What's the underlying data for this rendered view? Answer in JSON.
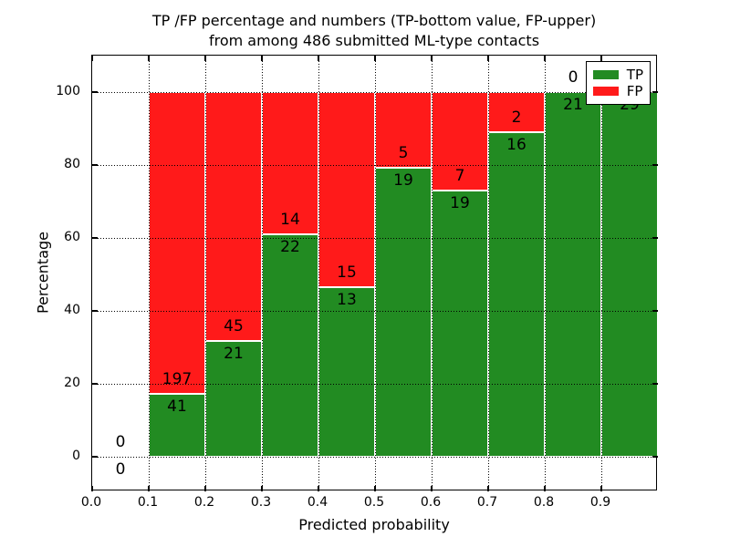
{
  "chart_data": {
    "type": "bar",
    "stacked": true,
    "title_line1": "TP /FP percentage and numbers (TP-bottom value, FP-upper)",
    "title_line2": "from among 486 submitted ML-type contacts",
    "xlabel": "Predicted probability",
    "ylabel": "Percentage",
    "xlim": [
      0.0,
      1.0
    ],
    "ylim": [
      -9.5,
      110
    ],
    "x_tick_labels": [
      "0.0",
      "0.1",
      "0.2",
      "0.3",
      "0.4",
      "0.5",
      "0.6",
      "0.7",
      "0.8",
      "0.9"
    ],
    "y_ticks": [
      0,
      20,
      40,
      60,
      80,
      100
    ],
    "y_tick_labels": [
      "0",
      "20",
      "40",
      "60",
      "80",
      "100"
    ],
    "grid_style": "dotted",
    "total_contacts": 486,
    "colors": {
      "tp": "#228B22",
      "fp": "#FF1A1A"
    },
    "legend": {
      "position": "upper right",
      "entries": [
        {
          "label": "TP",
          "series": "tp"
        },
        {
          "label": "FP",
          "series": "fp"
        }
      ]
    },
    "bins": [
      {
        "x_start": 0.0,
        "x_end": 0.1,
        "tp": 0,
        "fp": 0,
        "tp_percent": null
      },
      {
        "x_start": 0.1,
        "x_end": 0.2,
        "tp": 41,
        "fp": 197,
        "tp_percent": 17.23
      },
      {
        "x_start": 0.2,
        "x_end": 0.3,
        "tp": 21,
        "fp": 45,
        "tp_percent": 31.82
      },
      {
        "x_start": 0.3,
        "x_end": 0.4,
        "tp": 22,
        "fp": 14,
        "tp_percent": 61.11
      },
      {
        "x_start": 0.4,
        "x_end": 0.5,
        "tp": 13,
        "fp": 15,
        "tp_percent": 46.43
      },
      {
        "x_start": 0.5,
        "x_end": 0.6,
        "tp": 19,
        "fp": 5,
        "tp_percent": 79.17
      },
      {
        "x_start": 0.6,
        "x_end": 0.7,
        "tp": 19,
        "fp": 7,
        "tp_percent": 73.08
      },
      {
        "x_start": 0.7,
        "x_end": 0.8,
        "tp": 16,
        "fp": 2,
        "tp_percent": 88.89
      },
      {
        "x_start": 0.8,
        "x_end": 0.9,
        "tp": 21,
        "fp": 0,
        "tp_percent": 100.0
      },
      {
        "x_start": 0.9,
        "x_end": 1.0,
        "tp": 29,
        "fp": 0,
        "tp_percent": 100.0
      }
    ]
  }
}
